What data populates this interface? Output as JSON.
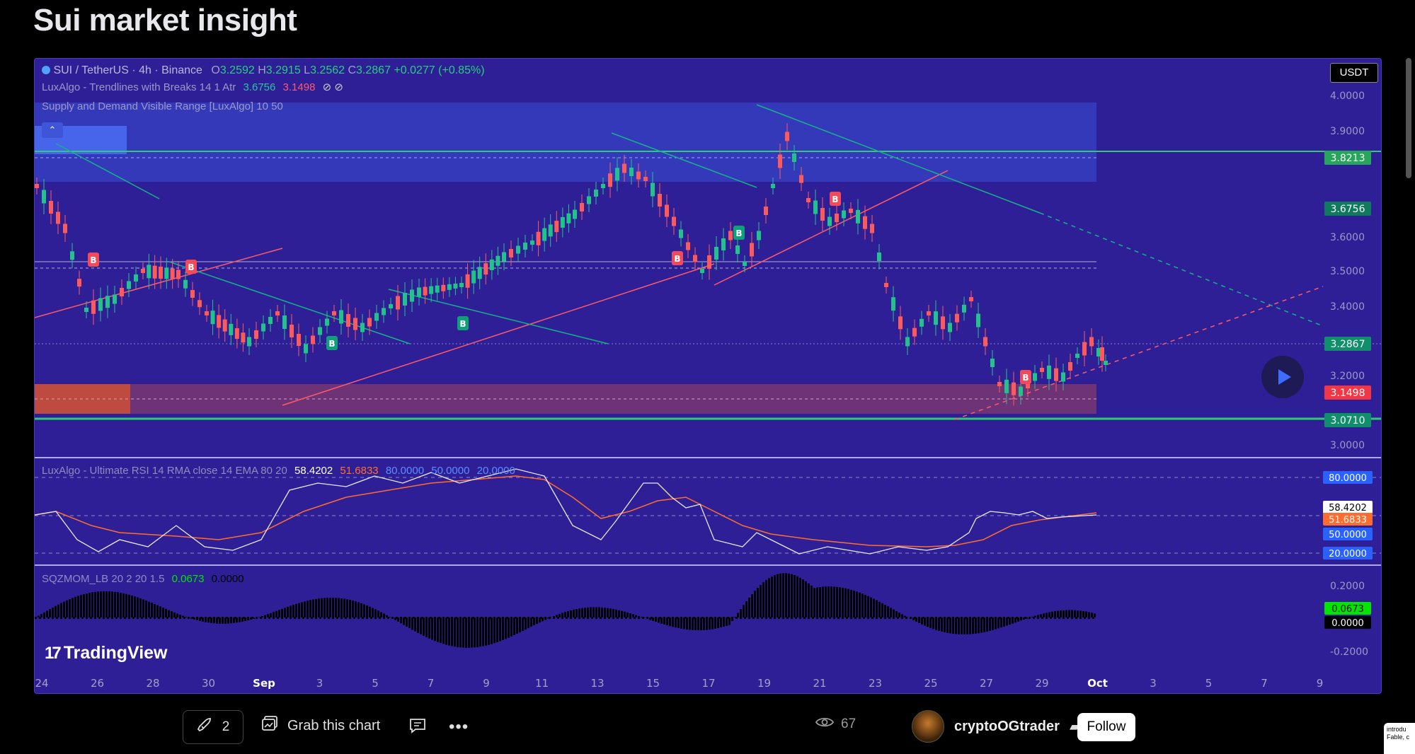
{
  "page": {
    "title": "Sui market insight"
  },
  "symbol": {
    "name": "SUI / TetherUS · 4h · Binance",
    "open_label": "O",
    "open": "3.2592",
    "high_label": "H",
    "high": "3.2915",
    "low_label": "L",
    "low": "3.2562",
    "close_label": "C",
    "close": "3.2867",
    "change": "+0.0277 (+0.85%)"
  },
  "indicators": {
    "trendlines": {
      "name": "LuxAlgo - Trendlines with Breaks 14 1 Atr",
      "v1": "3.6756",
      "v2": "3.1498",
      "icons": "⊘ ⊘"
    },
    "supply_demand": {
      "name": "Supply and Demand Visible Range [LuxAlgo] 10 50"
    },
    "rsi": {
      "name": "LuxAlgo - Ultimate RSI 14 RMA close 14 EMA 80 20",
      "v1": "58.4202",
      "v2": "51.6833",
      "v3": "80.0000",
      "v4": "50.0000",
      "v5": "20.0000"
    },
    "sqz": {
      "name": "SQZMOM_LB 20 2 20 1.5",
      "v1": "0.0673",
      "v2": "0.0000"
    }
  },
  "currency": "USDT",
  "price_axis": {
    "ticks": [
      "4.0000",
      "3.9000",
      "3.6000",
      "3.5000",
      "3.4000",
      "3.2000",
      "3.0000"
    ],
    "labels": [
      {
        "value": "3.8213",
        "color": "#26a65b"
      },
      {
        "value": "3.6756",
        "color": "#0f7a5c"
      },
      {
        "value": "3.2867",
        "color": "#0f8f6a"
      },
      {
        "value": "3.1498",
        "color": "#f23645"
      },
      {
        "value": "3.0710",
        "color": "#0f8f6a"
      }
    ]
  },
  "rsi_axis": {
    "labels": [
      {
        "value": "80.0000",
        "color": "#2962ff",
        "text": "#fff"
      },
      {
        "value": "58.4202",
        "color": "#ffffff",
        "text": "#000"
      },
      {
        "value": "51.6833",
        "color": "#ff6d2e",
        "text": "#fff"
      },
      {
        "value": "50.0000",
        "color": "#2962ff",
        "text": "#fff"
      },
      {
        "value": "20.0000",
        "color": "#2962ff",
        "text": "#fff"
      }
    ]
  },
  "sqz_axis": {
    "ticks": [
      "0.2000",
      "-0.2000"
    ],
    "labels": [
      {
        "value": "0.0673",
        "color": "#00e600",
        "text": "#000"
      },
      {
        "value": "0.0000",
        "color": "#000000",
        "text": "#fff"
      }
    ]
  },
  "time_axis": [
    "24",
    "26",
    "28",
    "30",
    "Sep",
    "3",
    "5",
    "7",
    "9",
    "11",
    "13",
    "15",
    "17",
    "19",
    "21",
    "23",
    "25",
    "27",
    "29",
    "Oct",
    "3",
    "5",
    "7",
    "9"
  ],
  "signals": [
    "B"
  ],
  "branding": {
    "logo": "TradingView"
  },
  "footer": {
    "boosts": "2",
    "grab_label": "Grab this chart",
    "views": "67",
    "author": "cryptoOGtrader",
    "follow_label": "Follow",
    "side_note": "introdu Fable, c"
  }
}
